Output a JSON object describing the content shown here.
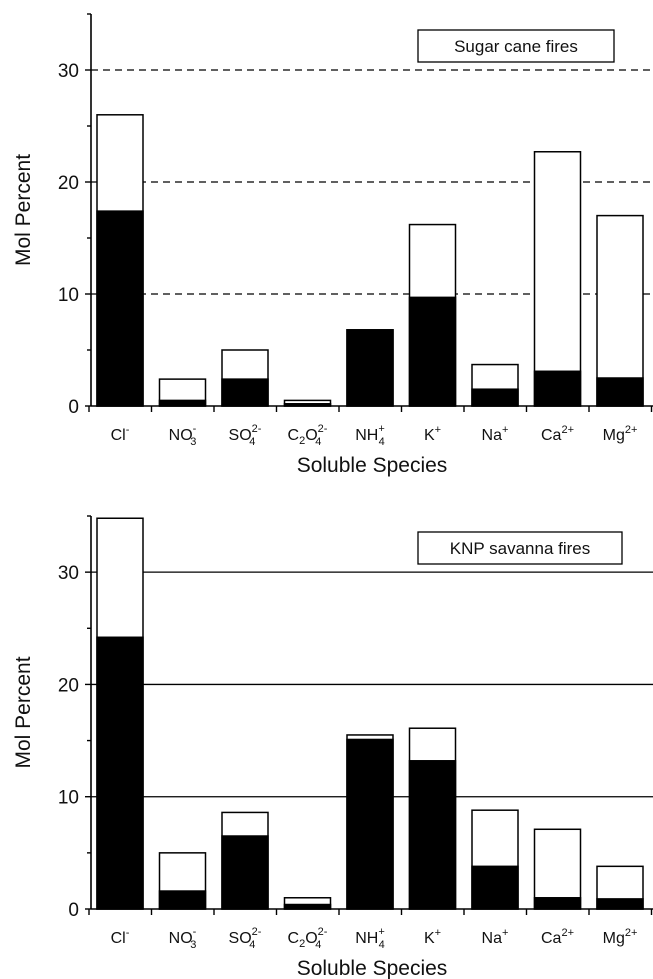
{
  "chart_data": [
    {
      "type": "bar",
      "title": "Sugar cane fires",
      "xlabel": "Soluble Species",
      "ylabel": "Mol Percent",
      "ylim": [
        0,
        35
      ],
      "yticks": [
        0,
        10,
        20,
        30
      ],
      "grid": "dashed",
      "legend_position": "top-right",
      "categories": [
        {
          "base": "Cl",
          "sub": "",
          "sup": "-"
        },
        {
          "base": "NO",
          "sub": "3",
          "sup": "-"
        },
        {
          "base": "SO",
          "sub": "4",
          "sup": "2-"
        },
        {
          "base": "C2O",
          "sub": "4",
          "sup": "2-"
        },
        {
          "base": "NH",
          "sub": "4",
          "sup": "+"
        },
        {
          "base": "K",
          "sub": "",
          "sup": "+"
        },
        {
          "base": "Na",
          "sub": "",
          "sup": "+"
        },
        {
          "base": "Ca",
          "sub": "",
          "sup": "2+"
        },
        {
          "base": "Mg",
          "sub": "",
          "sup": "2+"
        }
      ],
      "series": [
        {
          "values": [
            17.4,
            0.5,
            2.4,
            0.2,
            6.8,
            9.7,
            1.5,
            3.1,
            2.5
          ],
          "color": "#000000"
        },
        {
          "values": [
            26.0,
            2.4,
            5.0,
            0.5,
            6.8,
            16.2,
            3.7,
            22.7,
            17.0
          ],
          "color": "#ffffff"
        }
      ]
    },
    {
      "type": "bar",
      "title": "KNP savanna fires",
      "xlabel": "Soluble Species",
      "ylabel": "Mol Percent",
      "ylim": [
        0,
        35
      ],
      "yticks": [
        0,
        10,
        20,
        30
      ],
      "grid": "solid",
      "legend_position": "top-right",
      "categories": [
        {
          "base": "Cl",
          "sub": "",
          "sup": "-"
        },
        {
          "base": "NO",
          "sub": "3",
          "sup": "-"
        },
        {
          "base": "SO",
          "sub": "4",
          "sup": "2-"
        },
        {
          "base": "C2O",
          "sub": "4",
          "sup": "2-"
        },
        {
          "base": "NH",
          "sub": "4",
          "sup": "+"
        },
        {
          "base": "K",
          "sub": "",
          "sup": "+"
        },
        {
          "base": "Na",
          "sub": "",
          "sup": "+"
        },
        {
          "base": "Ca",
          "sub": "",
          "sup": "2+"
        },
        {
          "base": "Mg",
          "sub": "",
          "sup": "2+"
        }
      ],
      "series": [
        {
          "values": [
            24.2,
            1.6,
            6.5,
            0.4,
            15.1,
            13.2,
            3.8,
            1.0,
            0.9
          ],
          "color": "#000000"
        },
        {
          "values": [
            34.8,
            5.0,
            8.6,
            1.0,
            15.5,
            16.1,
            8.8,
            7.1,
            3.8
          ],
          "color": "#ffffff"
        }
      ]
    }
  ]
}
